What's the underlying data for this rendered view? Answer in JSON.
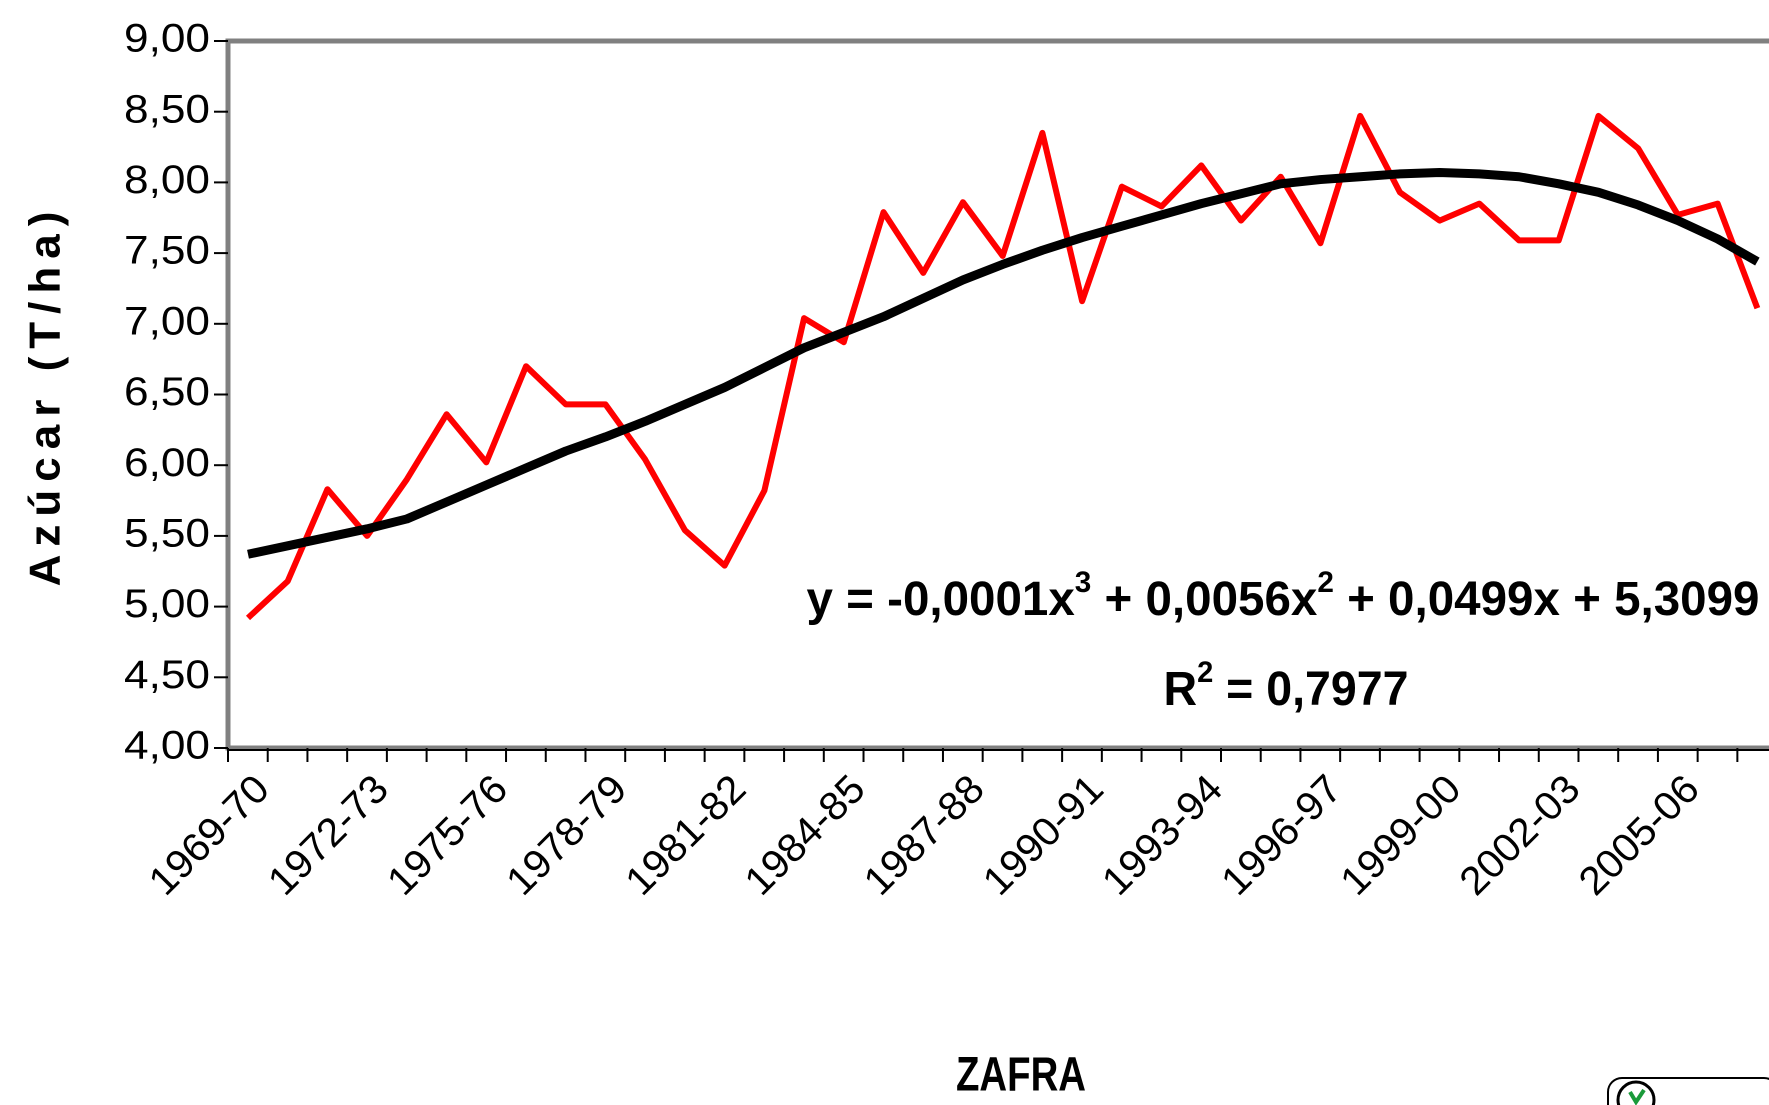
{
  "chart_data": {
    "type": "line",
    "y_label": "Azúcar (T/ha)",
    "x_label": "ZAFRA",
    "categories": [
      "1969-70",
      null,
      null,
      "1972-73",
      null,
      null,
      "1975-76",
      null,
      null,
      "1978-79",
      null,
      null,
      "1981-82",
      null,
      null,
      "1984-85",
      null,
      null,
      "1987-88",
      null,
      null,
      "1990-91",
      null,
      null,
      "1993-94",
      null,
      null,
      "1996-97",
      null,
      null,
      "1999-00",
      null,
      null,
      "2002-03",
      null,
      null,
      "2005-06",
      null,
      null
    ],
    "series": [
      {
        "color": "#ff0000",
        "values": [
          4.92,
          5.18,
          5.83,
          5.5,
          5.9,
          6.36,
          6.02,
          6.7,
          6.43,
          6.43,
          6.04,
          5.54,
          5.29,
          5.82,
          7.04,
          6.87,
          7.79,
          7.36,
          7.86,
          7.48,
          8.35,
          7.16,
          7.97,
          7.83,
          8.12,
          7.73,
          8.04,
          7.57,
          8.47,
          7.93,
          7.73,
          7.85,
          7.59,
          7.59,
          8.47,
          8.24,
          7.77,
          7.85,
          7.11
        ]
      },
      {
        "color": "#000000",
        "values": [
          5.37,
          5.43,
          5.49,
          5.55,
          5.62,
          5.74,
          5.86,
          5.98,
          6.1,
          6.2,
          6.31,
          6.43,
          6.55,
          6.69,
          6.83,
          6.94,
          7.05,
          7.18,
          7.31,
          7.42,
          7.52,
          7.61,
          7.69,
          7.77,
          7.85,
          7.92,
          7.99,
          8.02,
          8.04,
          8.06,
          8.07,
          8.06,
          8.04,
          7.99,
          7.93,
          7.84,
          7.73,
          7.6,
          7.44
        ]
      }
    ],
    "ylim": [
      4,
      9
    ],
    "yticks": [
      {
        "value": 4,
        "label": "4,00"
      },
      {
        "value": 4.5,
        "label": "4,50"
      },
      {
        "value": 5,
        "label": "5,00"
      },
      {
        "value": 5.5,
        "label": "5,50"
      },
      {
        "value": 6,
        "label": "6,00"
      },
      {
        "value": 6.5,
        "label": "6,50"
      },
      {
        "value": 7,
        "label": "7,00"
      },
      {
        "value": 7.5,
        "label": "7,50"
      },
      {
        "value": 8,
        "label": "8,00"
      },
      {
        "value": 8.5,
        "label": "8,50"
      },
      {
        "value": 9,
        "label": "9,00"
      }
    ],
    "equation": [
      "y = -0,0001x",
      "3",
      " + 0,0056x",
      "2",
      " + 0,0499x + 5,3099"
    ],
    "r_squared": [
      "R",
      "2",
      " = 0,7977"
    ]
  }
}
